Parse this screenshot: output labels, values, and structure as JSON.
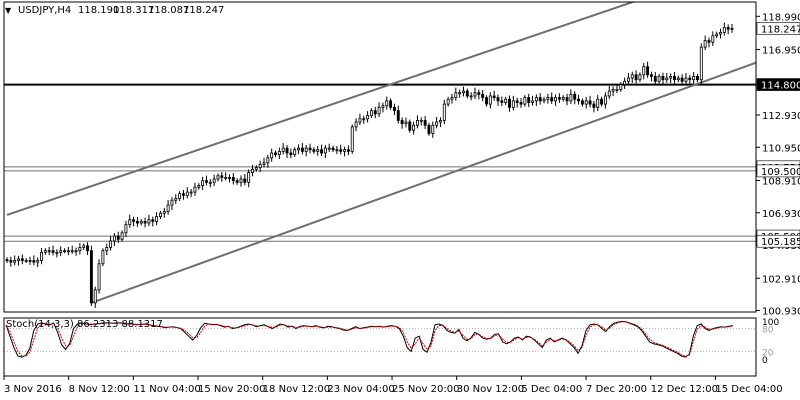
{
  "header": {
    "collapse_glyph": "▼",
    "symbol": "USDJPY,H4",
    "ohlc": [
      "118.190",
      "118.317",
      "118.087",
      "118.247"
    ]
  },
  "stoch": {
    "label": "Stoch(14,3,3) 86.2313 88.1317",
    "levels": [
      "100",
      "80",
      "20",
      "0"
    ]
  },
  "chart_data": {
    "type": "candlestick",
    "symbol": "USDJPY",
    "timeframe": "H4",
    "ylim": [
      100.9,
      119.5
    ],
    "y_ticks": [
      "118.990",
      "116.950",
      "114.910",
      "112.930",
      "110.950",
      "108.910",
      "106.930",
      "104.950",
      "102.910",
      "100.930"
    ],
    "x_ticks": [
      "3 Nov 2016",
      "8 Nov 12:00",
      "11 Nov 04:00",
      "15 Nov 20:00",
      "18 Nov 12:00",
      "23 Nov 04:00",
      "25 Nov 20:00",
      "30 Nov 12:00",
      "5 Dec 04:00",
      "7 Dec 20:00",
      "12 Dec 12:00",
      "15 Dec 04:00"
    ],
    "current_price": "118.247",
    "horizontal_levels": [
      {
        "label": "114.800",
        "value": 114.8,
        "style": "thick",
        "color": "#000000"
      },
      {
        "label": "109.750",
        "value": 109.75,
        "style": "thin",
        "color": "#707070"
      },
      {
        "label": "109.500",
        "value": 109.5,
        "style": "thin",
        "color": "#707070"
      },
      {
        "label": "105.500",
        "value": 105.5,
        "style": "thin",
        "color": "#707070"
      },
      {
        "label": "105.185",
        "value": 105.185,
        "style": "thin",
        "color": "#707070"
      }
    ],
    "channel_lines": [
      {
        "name": "upper",
        "from": [
          0,
          106.8
        ],
        "to": [
          186,
          121.7
        ]
      },
      {
        "name": "lower",
        "from": [
          22,
          101.4
        ],
        "to": [
          203,
          116.8
        ]
      }
    ],
    "closes": [
      104.0,
      103.9,
      104.0,
      104.1,
      104.0,
      104.0,
      104.0,
      103.9,
      104.0,
      104.5,
      104.6,
      104.6,
      104.5,
      104.5,
      104.6,
      104.6,
      104.6,
      104.6,
      104.6,
      104.8,
      104.9,
      104.6,
      101.4,
      102.2,
      103.8,
      104.6,
      104.8,
      105.2,
      105.5,
      105.3,
      105.7,
      106.2,
      106.5,
      106.4,
      106.3,
      106.4,
      106.3,
      106.5,
      106.4,
      106.7,
      106.9,
      107.0,
      107.4,
      107.7,
      107.8,
      108.1,
      108.0,
      108.2,
      108.2,
      108.5,
      108.6,
      108.9,
      108.8,
      108.8,
      109.0,
      109.2,
      109.1,
      109.1,
      109.1,
      108.9,
      108.8,
      109.0,
      108.8,
      109.4,
      109.6,
      109.7,
      109.9,
      110.0,
      110.3,
      110.6,
      110.5,
      110.7,
      110.9,
      110.6,
      110.5,
      110.8,
      110.9,
      110.7,
      110.9,
      110.8,
      110.7,
      110.8,
      110.6,
      110.9,
      110.9,
      110.8,
      110.8,
      110.7,
      110.8,
      110.7,
      112.2,
      112.5,
      112.7,
      112.7,
      112.9,
      113.2,
      113.0,
      113.4,
      113.5,
      113.8,
      113.4,
      113.2,
      112.6,
      112.4,
      112.5,
      112.0,
      112.3,
      112.6,
      112.6,
      112.3,
      111.8,
      112.3,
      112.5,
      112.6,
      113.6,
      113.9,
      114.0,
      114.3,
      114.3,
      114.4,
      114.1,
      114.1,
      114.3,
      114.2,
      114.0,
      113.6,
      114.1,
      114.0,
      113.8,
      113.7,
      113.9,
      113.4,
      113.8,
      113.7,
      113.6,
      114.0,
      113.7,
      113.8,
      114.0,
      113.8,
      113.9,
      114.0,
      113.8,
      114.0,
      113.9,
      114.0,
      113.8,
      114.2,
      113.9,
      113.8,
      113.6,
      113.8,
      113.6,
      113.4,
      113.9,
      113.6,
      114.1,
      114.4,
      114.5,
      114.5,
      114.8,
      115.0,
      115.2,
      115.4,
      115.1,
      115.4,
      115.9,
      115.4,
      115.3,
      115.0,
      115.3,
      115.1,
      115.2,
      115.3,
      115.1,
      115.2,
      115.0,
      115.2,
      115.1,
      115.3,
      115.1,
      117.1,
      117.5,
      117.4,
      117.8,
      117.9,
      118.0,
      118.3,
      118.2,
      118.25
    ],
    "stoch_k": [
      90,
      60,
      30,
      8,
      5,
      10,
      28,
      75,
      92,
      95,
      92,
      90,
      95,
      70,
      38,
      25,
      40,
      80,
      92,
      95,
      93,
      90,
      92,
      93,
      94,
      95,
      95,
      94,
      95,
      95,
      92,
      93,
      92,
      90,
      91,
      92,
      90,
      88,
      86,
      85,
      82,
      84,
      85,
      83,
      80,
      70,
      60,
      50,
      62,
      82,
      94,
      92,
      90,
      91,
      88,
      84,
      86,
      80,
      82,
      86,
      90,
      92,
      90,
      85,
      88,
      90,
      85,
      80,
      86,
      92,
      90,
      84,
      86,
      80,
      86,
      88,
      86,
      85,
      88,
      84,
      82,
      86,
      85,
      82,
      80,
      76,
      75,
      80,
      85,
      80,
      82,
      84,
      86,
      85,
      86,
      84,
      86,
      88,
      86,
      80,
      60,
      30,
      20,
      55,
      60,
      25,
      18,
      45,
      90,
      92,
      88,
      75,
      70,
      68,
      78,
      55,
      48,
      55,
      70,
      65,
      55,
      52,
      55,
      65,
      66,
      45,
      40,
      45,
      55,
      58,
      50,
      60,
      58,
      50,
      40,
      30,
      50,
      55,
      45,
      50,
      55,
      50,
      40,
      30,
      15,
      35,
      75,
      90,
      92,
      90,
      80,
      72,
      86,
      94,
      97,
      99,
      98,
      94,
      90,
      85,
      75,
      60,
      45,
      40,
      38,
      35,
      30,
      25,
      20,
      15,
      8,
      5,
      12,
      60,
      88,
      92,
      80,
      75,
      80,
      83,
      85,
      84,
      86,
      88
    ],
    "stoch_d": [
      88,
      72,
      45,
      20,
      8,
      8,
      18,
      50,
      82,
      92,
      93,
      91,
      92,
      82,
      55,
      35,
      35,
      60,
      85,
      92,
      93,
      92,
      91,
      92,
      93,
      94,
      94,
      94,
      94,
      94,
      93,
      93,
      92,
      91,
      91,
      91,
      90,
      89,
      87,
      86,
      84,
      84,
      84,
      83,
      81,
      75,
      66,
      56,
      56,
      70,
      86,
      92,
      91,
      91,
      89,
      86,
      85,
      82,
      82,
      84,
      87,
      90,
      90,
      87,
      87,
      88,
      86,
      83,
      84,
      89,
      90,
      87,
      86,
      83,
      84,
      86,
      86,
      85,
      86,
      85,
      83,
      84,
      84,
      83,
      81,
      78,
      76,
      78,
      82,
      81,
      81,
      83,
      85,
      85,
      85,
      85,
      85,
      86,
      86,
      83,
      70,
      45,
      28,
      40,
      55,
      40,
      25,
      35,
      75,
      88,
      89,
      80,
      74,
      70,
      74,
      62,
      52,
      53,
      64,
      66,
      58,
      54,
      54,
      61,
      64,
      52,
      44,
      44,
      51,
      56,
      52,
      57,
      57,
      52,
      44,
      35,
      44,
      52,
      48,
      49,
      53,
      51,
      44,
      35,
      22,
      30,
      62,
      84,
      90,
      90,
      84,
      76,
      82,
      91,
      95,
      98,
      98,
      95,
      92,
      87,
      79,
      66,
      52,
      44,
      40,
      37,
      33,
      28,
      23,
      18,
      11,
      7,
      10,
      45,
      78,
      88,
      84,
      78,
      79,
      81,
      84,
      84,
      85,
      87
    ]
  }
}
